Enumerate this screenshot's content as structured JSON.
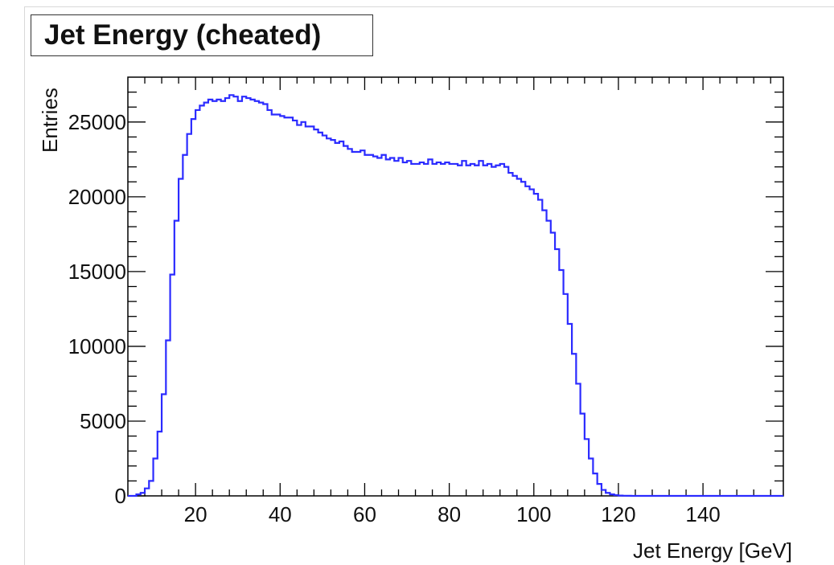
{
  "chart_data": {
    "type": "histogram",
    "title": "Jet Energy (cheated)",
    "xlabel": "Jet Energy [GeV]",
    "ylabel": "Entries",
    "xlim": [
      4,
      159
    ],
    "ylim": [
      0,
      28000
    ],
    "xticks": [
      20,
      40,
      60,
      80,
      100,
      120,
      140
    ],
    "yticks": [
      0,
      5000,
      10000,
      15000,
      20000,
      25000
    ],
    "line_color": "#2b2bff",
    "grid": false,
    "bins": {
      "start": 4,
      "width": 1,
      "values": [
        0,
        0,
        100,
        200,
        500,
        1000,
        2500,
        4300,
        6800,
        10400,
        14800,
        18400,
        21200,
        22800,
        24200,
        25200,
        25800,
        26100,
        26300,
        26500,
        26400,
        26500,
        26400,
        26600,
        26800,
        26700,
        26400,
        26700,
        26600,
        26500,
        26400,
        26300,
        26200,
        25800,
        25500,
        25500,
        25400,
        25300,
        25300,
        25100,
        24800,
        25000,
        24700,
        24700,
        24500,
        24300,
        24100,
        23900,
        23800,
        23600,
        23700,
        23400,
        23200,
        23000,
        23000,
        23100,
        22800,
        22800,
        22700,
        22600,
        22800,
        22500,
        22600,
        22400,
        22600,
        22300,
        22400,
        22200,
        22200,
        22300,
        22200,
        22500,
        22200,
        22300,
        22200,
        22300,
        22200,
        22200,
        22100,
        22400,
        22100,
        22200,
        22100,
        22400,
        22100,
        22200,
        22000,
        22100,
        22200,
        22000,
        21600,
        21400,
        21200,
        21000,
        20700,
        20500,
        20200,
        19800,
        19100,
        18400,
        17600,
        16500,
        15100,
        13500,
        11500,
        9500,
        7500,
        5500,
        3800,
        2500,
        1500,
        800,
        400,
        200,
        100,
        50,
        20,
        10,
        5,
        0,
        0,
        0,
        0,
        0,
        0,
        0,
        0,
        0,
        0,
        0,
        0,
        0,
        0,
        0,
        0,
        0,
        0,
        0,
        0,
        0,
        0,
        0,
        0,
        0,
        0,
        0,
        0,
        0,
        0,
        0,
        0,
        0,
        0,
        0,
        0
      ]
    }
  }
}
